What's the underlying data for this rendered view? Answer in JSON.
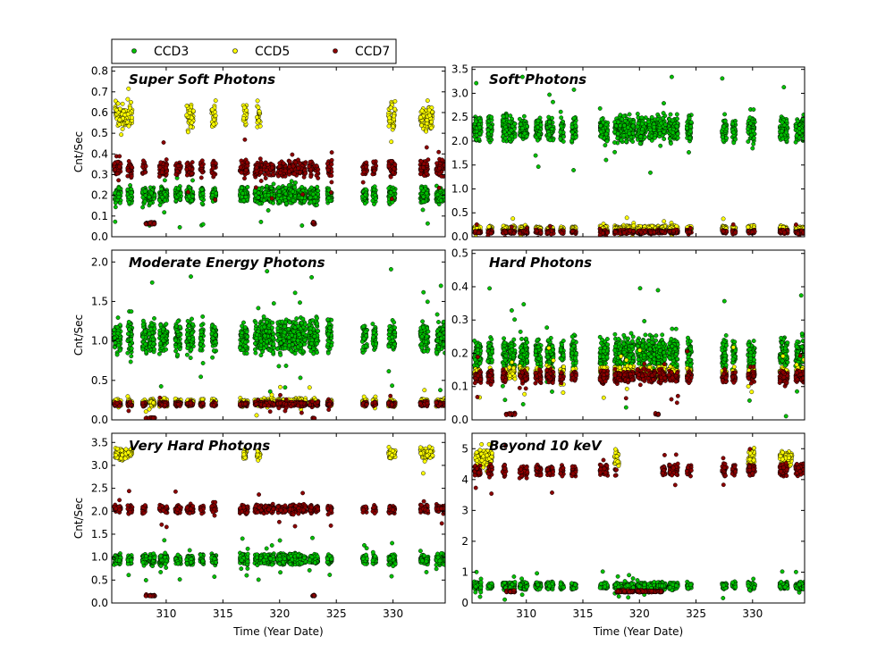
{
  "chart_data": [
    {
      "type": "scatter",
      "title": "Super Soft Photons",
      "xlabel": "",
      "ylabel": "Cnt/Sec",
      "xlim": [
        305.2,
        334.6
      ],
      "ylim": [
        0.0,
        0.82
      ],
      "yticks": [
        0.0,
        0.1,
        0.2,
        0.3,
        0.4,
        0.5,
        0.6,
        0.7,
        0.8
      ],
      "ytick_labels": [
        "0.0",
        "0.1",
        "0.2",
        "0.3",
        "0.4",
        "0.5",
        "0.6",
        "0.7",
        "0.8"
      ],
      "xticks": [
        310,
        315,
        320,
        325,
        330
      ],
      "xtick_labels": [],
      "series": [
        {
          "name": "CCD3",
          "center": 0.2,
          "spread": 0.04
        },
        {
          "name": "CCD5",
          "center": 0.58,
          "spread": 0.07,
          "active": [
            [
              305.5,
              307.0
            ],
            [
              311.8,
              312.4
            ],
            [
              314.0,
              314.4
            ],
            [
              316.8,
              317.1
            ],
            [
              318.0,
              318.3
            ],
            [
              329.6,
              330.2
            ],
            [
              332.4,
              333.5
            ]
          ]
        },
        {
          "name": "CCD7",
          "center": 0.33,
          "spread": 0.04,
          "low_value": 0.06,
          "low_windows": [
            [
              308.2,
              309.0
            ],
            [
              322.9,
              323.1
            ]
          ]
        }
      ]
    },
    {
      "type": "scatter",
      "title": "Soft Photons",
      "xlabel": "",
      "ylabel": "",
      "xlim": [
        305.2,
        334.6
      ],
      "ylim": [
        0.0,
        3.55
      ],
      "yticks": [
        0.0,
        0.5,
        1.0,
        1.5,
        2.0,
        2.5,
        3.0,
        3.5
      ],
      "ytick_labels": [
        "0.0",
        "0.5",
        "1.0",
        "1.5",
        "2.0",
        "2.5",
        "3.0",
        "3.5"
      ],
      "xticks": [
        310,
        315,
        320,
        325,
        330
      ],
      "xtick_labels": [],
      "series": [
        {
          "name": "CCD3",
          "center": 2.25,
          "spread": 0.28
        },
        {
          "name": "CCD5",
          "center": 0.17,
          "spread": 0.06
        },
        {
          "name": "CCD7",
          "center": 0.1,
          "spread": 0.04
        }
      ]
    },
    {
      "type": "scatter",
      "title": "Moderate Energy Photons",
      "xlabel": "",
      "ylabel": "Cnt/Sec",
      "xlim": [
        305.2,
        334.6
      ],
      "ylim": [
        0.0,
        2.15
      ],
      "yticks": [
        0.0,
        0.5,
        1.0,
        1.5,
        2.0
      ],
      "ytick_labels": [
        "0.0",
        "0.5",
        "1.0",
        "1.5",
        "2.0"
      ],
      "xticks": [
        310,
        315,
        320,
        325,
        330
      ],
      "xtick_labels": [],
      "series": [
        {
          "name": "CCD3",
          "center": 1.05,
          "spread": 0.22
        },
        {
          "name": "CCD5",
          "center": 0.22,
          "spread": 0.05
        },
        {
          "name": "CCD7",
          "center": 0.2,
          "spread": 0.03,
          "low_value": 0.02,
          "low_windows": [
            [
              308.2,
              309.0
            ],
            [
              322.9,
              323.1
            ]
          ]
        }
      ]
    },
    {
      "type": "scatter",
      "title": "Hard Photons",
      "xlabel": "",
      "ylabel": "",
      "xlim": [
        305.2,
        334.6
      ],
      "ylim": [
        0.0,
        0.51
      ],
      "yticks": [
        0.0,
        0.1,
        0.2,
        0.3,
        0.4,
        0.5
      ],
      "ytick_labels": [
        "0.0",
        "0.1",
        "0.2",
        "0.3",
        "0.4",
        "0.5"
      ],
      "xticks": [
        310,
        315,
        320,
        325,
        330
      ],
      "xtick_labels": [],
      "series": [
        {
          "name": "CCD3",
          "center": 0.2,
          "spread": 0.05
        },
        {
          "name": "CCD5",
          "center": 0.14,
          "spread": 0.02
        },
        {
          "name": "CCD7",
          "center": 0.13,
          "spread": 0.02,
          "low_value": 0.015,
          "low_windows": [
            [
              308.2,
              309.0
            ],
            [
              321.4,
              321.7
            ]
          ]
        }
      ]
    },
    {
      "type": "scatter",
      "title": "Very Hard Photons",
      "xlabel": "Time (Year Date)",
      "ylabel": "Cnt/Sec",
      "xlim": [
        305.2,
        334.6
      ],
      "ylim": [
        0.0,
        3.7
      ],
      "yticks": [
        0.0,
        0.5,
        1.0,
        1.5,
        2.0,
        2.5,
        3.0,
        3.5
      ],
      "ytick_labels": [
        "0.0",
        "0.5",
        "1.0",
        "1.5",
        "2.0",
        "2.5",
        "3.0",
        "3.5"
      ],
      "xticks": [
        310,
        315,
        320,
        325,
        330
      ],
      "xtick_labels": [
        "310",
        "315",
        "320",
        "325",
        "330"
      ],
      "series": [
        {
          "name": "CCD3",
          "center": 0.95,
          "spread": 0.12
        },
        {
          "name": "CCD5",
          "center": 3.25,
          "spread": 0.13,
          "active": [
            [
              305.5,
              307.0
            ],
            [
              316.8,
              317.1
            ],
            [
              318.0,
              318.3
            ],
            [
              329.6,
              330.2
            ],
            [
              332.4,
              333.5
            ]
          ]
        },
        {
          "name": "CCD7",
          "center": 2.05,
          "spread": 0.1,
          "low_value": 0.15,
          "low_windows": [
            [
              308.2,
              309.0
            ],
            [
              322.9,
              323.1
            ]
          ]
        }
      ]
    },
    {
      "type": "scatter",
      "title": "Beyond 10 keV",
      "xlabel": "Time (Year Date)",
      "ylabel": "",
      "xlim": [
        305.2,
        334.6
      ],
      "ylim": [
        0.0,
        5.5
      ],
      "yticks": [
        0,
        1,
        2,
        3,
        4,
        5
      ],
      "ytick_labels": [
        "0",
        "1",
        "2",
        "3",
        "4",
        "5"
      ],
      "xticks": [
        310,
        315,
        320,
        325,
        330
      ],
      "xtick_labels": [
        "310",
        "315",
        "320",
        "325",
        "330"
      ],
      "series": [
        {
          "name": "CCD3",
          "center": 0.55,
          "spread": 0.12
        },
        {
          "name": "CCD5",
          "center": 4.7,
          "spread": 0.3,
          "active": [
            [
              305.5,
              307.0
            ],
            [
              317.8,
              318.2
            ],
            [
              329.6,
              330.2
            ],
            [
              332.4,
              333.5
            ]
          ]
        },
        {
          "name": "CCD7",
          "center": 4.3,
          "spread": 0.2,
          "low_value": 0.35,
          "low_windows": [
            [
              308.2,
              309.0
            ],
            [
              318.0,
              322.0
            ]
          ]
        }
      ]
    }
  ],
  "legend": {
    "placement": "top-left",
    "entries": [
      {
        "label": "CCD3",
        "color": "#00c000"
      },
      {
        "label": "CCD5",
        "color": "#ffff00"
      },
      {
        "label": "CCD7",
        "color": "#8b0000"
      }
    ]
  },
  "active_windows": [
    [
      305.4,
      306.0
    ],
    [
      306.6,
      307.0
    ],
    [
      307.9,
      308.3
    ],
    [
      308.5,
      309.0
    ],
    [
      309.4,
      310.1
    ],
    [
      310.8,
      311.3
    ],
    [
      311.8,
      312.4
    ],
    [
      313.0,
      313.3
    ],
    [
      314.0,
      314.4
    ],
    [
      316.5,
      317.2
    ],
    [
      317.8,
      318.5
    ],
    [
      318.6,
      319.5
    ],
    [
      319.8,
      320.6
    ],
    [
      320.8,
      321.5
    ],
    [
      321.6,
      322.3
    ],
    [
      322.6,
      323.4
    ],
    [
      324.2,
      324.6
    ],
    [
      327.3,
      327.7
    ],
    [
      328.2,
      328.5
    ],
    [
      329.6,
      330.2
    ],
    [
      332.4,
      333.1
    ],
    [
      333.8,
      334.6
    ]
  ]
}
